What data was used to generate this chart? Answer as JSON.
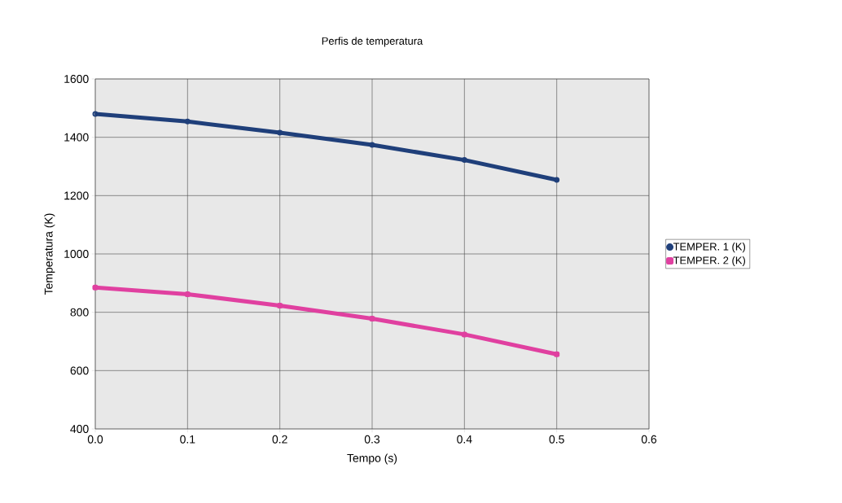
{
  "chart_data": {
    "type": "line",
    "title": "Perfis de temperatura",
    "xlabel": "Tempo (s)",
    "ylabel": "Temperatura (K)",
    "x": [
      0.0,
      0.1,
      0.2,
      0.3,
      0.4,
      0.5
    ],
    "series": [
      {
        "name": "TEMPER. 1 (K)",
        "color": "#1f3f7a",
        "marker": "circle",
        "values": [
          1480,
          1454,
          1416,
          1374,
          1322,
          1254
        ]
      },
      {
        "name": "TEMPER. 2 (K)",
        "color": "#e040a0",
        "marker": "square",
        "values": [
          885,
          862,
          823,
          778,
          724,
          656
        ]
      }
    ],
    "xlim": [
      0.0,
      0.6
    ],
    "xticks": [
      {
        "value": 0.0,
        "label": "0.0"
      },
      {
        "value": 0.1,
        "label": "0.1"
      },
      {
        "value": 0.2,
        "label": "0.2"
      },
      {
        "value": 0.3,
        "label": "0.3"
      },
      {
        "value": 0.4,
        "label": "0.4"
      },
      {
        "value": 0.5,
        "label": "0.5"
      },
      {
        "value": 0.6,
        "label": "0.6"
      }
    ],
    "ylim": [
      400,
      1600
    ],
    "yticks": [
      400,
      600,
      800,
      1000,
      1200,
      1400,
      1600
    ],
    "grid": true,
    "legend": "right",
    "line_style": "solid"
  }
}
